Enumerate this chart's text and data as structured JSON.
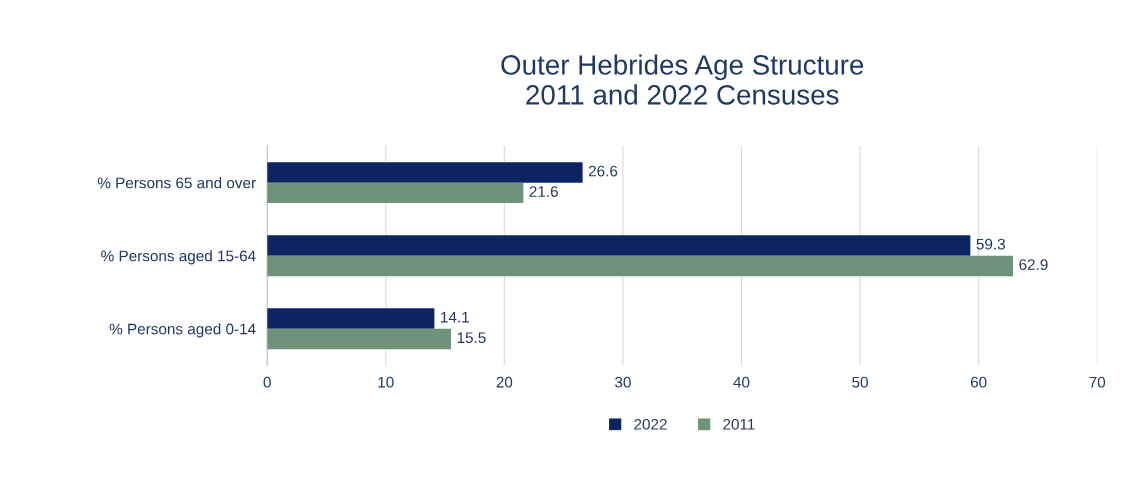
{
  "chart_data": {
    "type": "bar",
    "orientation": "horizontal",
    "title": "Outer Hebrides Age Structure\n2011 and 2022 Censuses",
    "categories": [
      "% Persons 65 and over",
      "% Persons aged 15-64",
      "% Persons aged 0-14"
    ],
    "series": [
      {
        "name": "2022",
        "color": "#0c2461",
        "values": [
          26.6,
          59.3,
          14.1
        ]
      },
      {
        "name": "2011",
        "color": "#6e927a",
        "values": [
          21.6,
          62.9,
          15.5
        ]
      }
    ],
    "xlim": [
      0,
      70
    ],
    "xticks": [
      0,
      10,
      20,
      30,
      40,
      50,
      60,
      70
    ],
    "grid": "x",
    "legend": "bottom",
    "data_labels": true
  }
}
